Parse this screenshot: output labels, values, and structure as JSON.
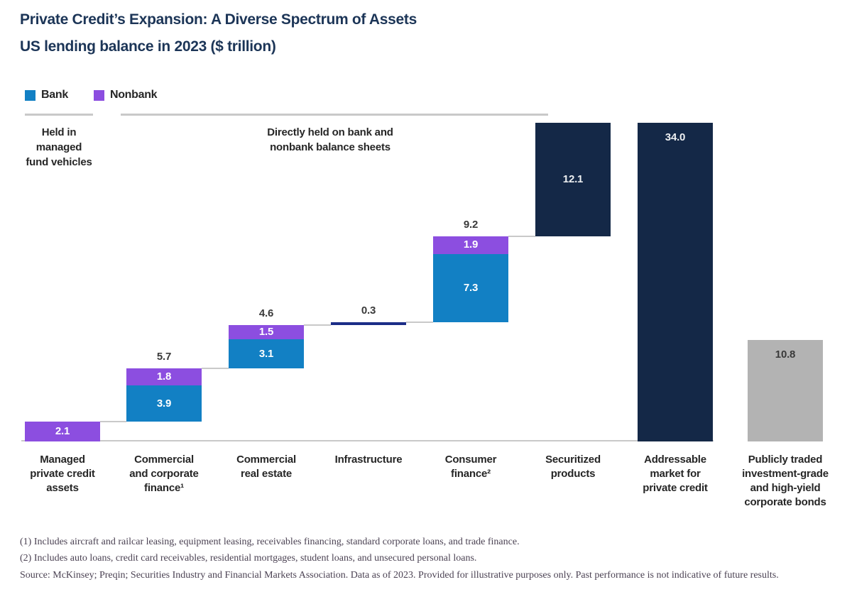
{
  "header": {
    "title": "Private Credit’s Expansion: A Diverse Spectrum of Assets",
    "subtitle": "US lending balance in 2023 ($ trillion)"
  },
  "colors": {
    "bank_blue": "#1280c4",
    "nonbank_purple": "#8c4ee0",
    "dark_navy": "#142847",
    "infrastructure_blue": "#1c2d87",
    "bond_gray": "#b3b3b3",
    "line_gray": "#c9c9c9",
    "title_navy": "#1c3557"
  },
  "annotations": {
    "group_label_1": "Held in managed fund vehicles",
    "group_label_2": "Directly held on bank and nonbank balance sheets"
  },
  "footnotes": {
    "note_1": "(1) Includes aircraft and railcar leasing, equipment leasing, receivables financing, standard corporate loans, and trade finance.",
    "note_2": "(2) Includes auto loans, credit card receivables, residential mortgages, student loans, and unsecured personal loans.",
    "source": "Source: McKinsey; Preqin; Securities Industry and Financial Markets Association. Data as of 2023. Provided for illustrative purposes only. Past performance is not indicative of future results."
  },
  "chart_data": {
    "type": "bar",
    "variant": "stacked-waterfall",
    "title": "Private Credit’s Expansion: A Diverse Spectrum of Assets",
    "subtitle": "US lending balance in 2023 ($ trillion)",
    "unit": "$ trillion",
    "grid": false,
    "legend_position": "top-left",
    "legend": [
      {
        "name": "Bank",
        "color": "#1280c4"
      },
      {
        "name": "Nonbank",
        "color": "#8c4ee0"
      }
    ],
    "bars": [
      {
        "category": "Managed private credit assets",
        "category_lines": "Managed\nprivate credit\nassets",
        "waterfall": true,
        "total": 2.1,
        "total_label": null,
        "segments": [
          {
            "series": "Nonbank",
            "value": 2.1,
            "label": "2.1",
            "color": "#8c4ee0",
            "label_color": "#ffffff",
            "label_pos": "center"
          }
        ]
      },
      {
        "category": "Commercial and corporate finance",
        "category_lines": "Commercial\nand corporate\nfinance¹",
        "waterfall": true,
        "total": 5.7,
        "total_label": "5.7",
        "segments": [
          {
            "series": "Bank",
            "value": 3.9,
            "label": "3.9",
            "color": "#1280c4",
            "label_color": "#ffffff",
            "label_pos": "center"
          },
          {
            "series": "Nonbank",
            "value": 1.8,
            "label": "1.8",
            "color": "#8c4ee0",
            "label_color": "#ffffff",
            "label_pos": "center"
          }
        ]
      },
      {
        "category": "Commercial real estate",
        "category_lines": "Commercial\nreal estate",
        "waterfall": true,
        "total": 4.6,
        "total_label": "4.6",
        "segments": [
          {
            "series": "Bank",
            "value": 3.1,
            "label": "3.1",
            "color": "#1280c4",
            "label_color": "#ffffff",
            "label_pos": "center"
          },
          {
            "series": "Nonbank",
            "value": 1.5,
            "label": "1.5",
            "color": "#8c4ee0",
            "label_color": "#ffffff",
            "label_pos": "center"
          }
        ]
      },
      {
        "category": "Infrastructure",
        "category_lines": "Infrastructure",
        "waterfall": true,
        "total": 0.3,
        "total_label": "0.3",
        "segments": [
          {
            "series": "Bank and nonbank",
            "value": 0.3,
            "label": null,
            "color": "#1c2d87",
            "label_color": null,
            "label_pos": null
          }
        ]
      },
      {
        "category": "Consumer finance",
        "category_lines": "Consumer\nfinance²",
        "waterfall": true,
        "total": 9.2,
        "total_label": "9.2",
        "segments": [
          {
            "series": "Bank",
            "value": 7.3,
            "label": "7.3",
            "color": "#1280c4",
            "label_color": "#ffffff",
            "label_pos": "center"
          },
          {
            "series": "Nonbank",
            "value": 1.9,
            "label": "1.9",
            "color": "#8c4ee0",
            "label_color": "#ffffff",
            "label_pos": "center"
          }
        ]
      },
      {
        "category": "Securitized products",
        "category_lines": "Securitized\nproducts",
        "waterfall": true,
        "total": 12.1,
        "total_label": null,
        "segments": [
          {
            "series": "Securitized",
            "value": 12.1,
            "label": "12.1",
            "color": "#142847",
            "label_color": "#eef0f2",
            "label_pos": "center"
          }
        ]
      },
      {
        "category": "Addressable market for private credit",
        "category_lines": "Addressable\nmarket for\nprivate credit",
        "waterfall": false,
        "total": 34.0,
        "total_label": null,
        "segments": [
          {
            "series": "Total addressable market",
            "value": 34.0,
            "label": "34.0",
            "color": "#142847",
            "label_color": "#eef0f2",
            "label_pos": "top"
          }
        ]
      },
      {
        "category": "Publicly traded investment-grade and high-yield corporate bonds",
        "category_lines": "Publicly traded\ninvestment-grade\nand high-yield\ncorporate bonds",
        "waterfall": false,
        "total": 10.8,
        "total_label": null,
        "segments": [
          {
            "series": "Corporate bonds",
            "value": 10.8,
            "label": "10.8",
            "color": "#b3b3b3",
            "label_color": "#3a3a3a",
            "label_pos": "top"
          }
        ]
      }
    ],
    "axis": {
      "y_unit_trillion_usd": true,
      "baseline_total_check": 34.0
    }
  }
}
